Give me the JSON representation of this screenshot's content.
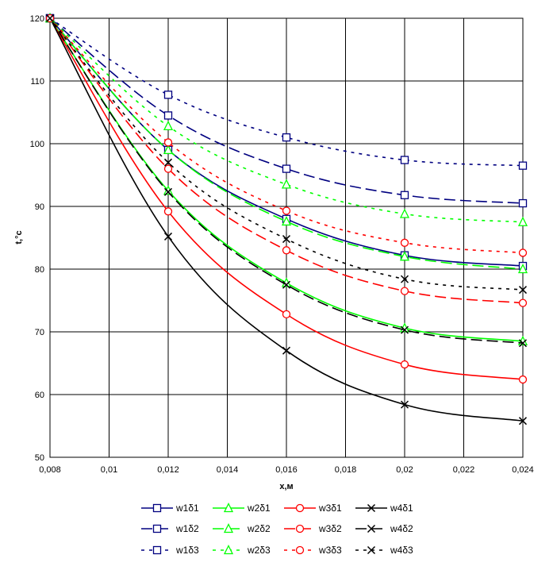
{
  "chart_data": {
    "type": "line",
    "title": "",
    "xlabel": "x,м",
    "ylabel": "t,°c",
    "xlim": [
      0.008,
      0.024
    ],
    "ylim": [
      50,
      120
    ],
    "x_ticks": [
      0.008,
      0.01,
      0.012,
      0.014,
      0.016,
      0.018,
      0.02,
      0.022,
      0.024
    ],
    "x_tick_labels": [
      "0,008",
      "0,01",
      "0,012",
      "0,014",
      "0,016",
      "0,018",
      "0,02",
      "0,022",
      "0,024"
    ],
    "y_ticks": [
      50,
      60,
      70,
      80,
      90,
      100,
      110,
      120
    ],
    "y_tick_labels": [
      "50",
      "60",
      "70",
      "80",
      "90",
      "100",
      "110",
      "120"
    ],
    "grid": true,
    "legend_placement": "bottom",
    "x": [
      0.008,
      0.012,
      0.016,
      0.02,
      0.024
    ],
    "series": [
      {
        "name": "w1δ1",
        "values": [
          120,
          99.0,
          88.0,
          82.2,
          80.5
        ],
        "color": "#000080",
        "dash": "solid",
        "marker": "square"
      },
      {
        "name": "w2δ1",
        "values": [
          120,
          92.5,
          77.8,
          70.6,
          68.5
        ],
        "color": "#00ff00",
        "dash": "solid",
        "marker": "triangle"
      },
      {
        "name": "w3δ1",
        "values": [
          120,
          89.2,
          72.8,
          64.8,
          62.4
        ],
        "color": "#ff0000",
        "dash": "solid",
        "marker": "circle"
      },
      {
        "name": "w4δ1",
        "values": [
          120,
          85.2,
          67.0,
          58.4,
          55.8
        ],
        "color": "#000000",
        "dash": "solid",
        "marker": "x"
      },
      {
        "name": "w1δ2",
        "values": [
          120,
          104.5,
          96.0,
          91.8,
          90.5
        ],
        "color": "#000080",
        "dash": "long",
        "marker": "square"
      },
      {
        "name": "w2δ2",
        "values": [
          120,
          99.0,
          87.6,
          82.0,
          80.0
        ],
        "color": "#00ff00",
        "dash": "long",
        "marker": "triangle"
      },
      {
        "name": "w3δ2",
        "values": [
          120,
          96.0,
          83.0,
          76.5,
          74.6
        ],
        "color": "#ff0000",
        "dash": "long",
        "marker": "circle"
      },
      {
        "name": "w4δ2",
        "values": [
          120,
          92.3,
          77.5,
          70.3,
          68.2
        ],
        "color": "#000000",
        "dash": "long",
        "marker": "x"
      },
      {
        "name": "w1δ3",
        "values": [
          120,
          107.8,
          101.0,
          97.4,
          96.5
        ],
        "color": "#000080",
        "dash": "short",
        "marker": "square"
      },
      {
        "name": "w2δ3",
        "values": [
          120,
          102.8,
          93.5,
          88.8,
          87.5
        ],
        "color": "#00ff00",
        "dash": "short",
        "marker": "triangle"
      },
      {
        "name": "w3δ3",
        "values": [
          120,
          100.2,
          89.3,
          84.2,
          82.6
        ],
        "color": "#ff0000",
        "dash": "short",
        "marker": "circle"
      },
      {
        "name": "w4δ3",
        "values": [
          120,
          97.0,
          84.8,
          78.4,
          76.7
        ],
        "color": "#000000",
        "dash": "short",
        "marker": "x"
      }
    ]
  }
}
